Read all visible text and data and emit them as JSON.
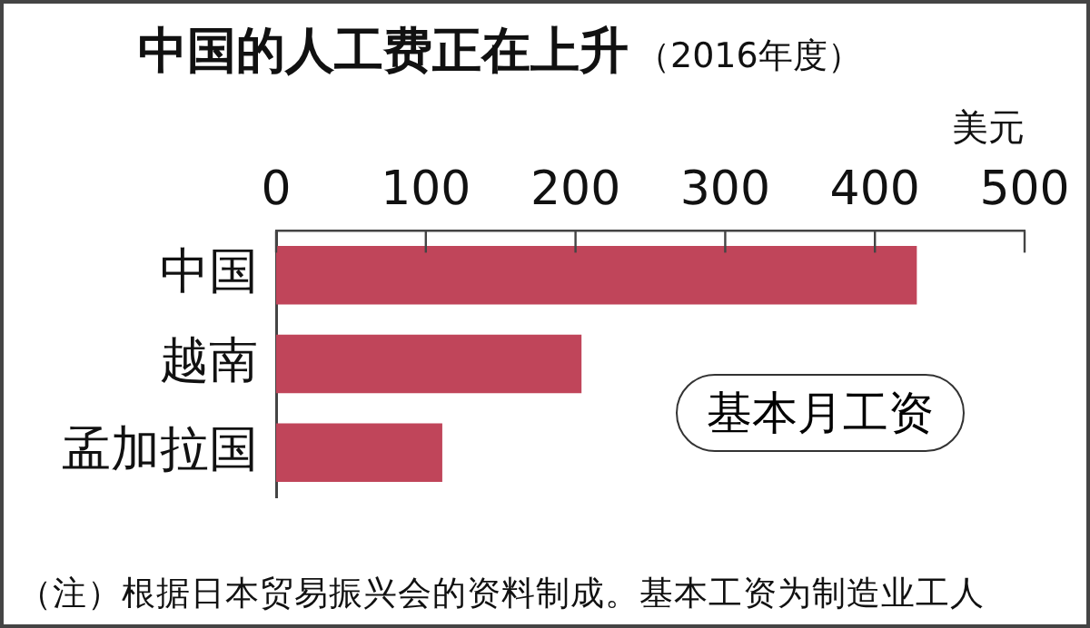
{
  "chart_data": {
    "type": "bar",
    "orientation": "horizontal",
    "title": "中国的人工费正在上升",
    "subtitle": "（2016年度）",
    "xlabel": "美元",
    "categories": [
      "中国",
      "越南",
      "孟加拉国"
    ],
    "values": [
      428,
      204,
      111
    ],
    "color": "#c0455a",
    "xlim": [
      0,
      500
    ],
    "xticks": [
      0,
      100,
      200,
      300,
      400,
      500
    ],
    "grid": false,
    "annotations": [
      "基本月工资",
      "（注）根据日本贸易振兴会的资料制成。基本工资为制造业工人"
    ]
  }
}
